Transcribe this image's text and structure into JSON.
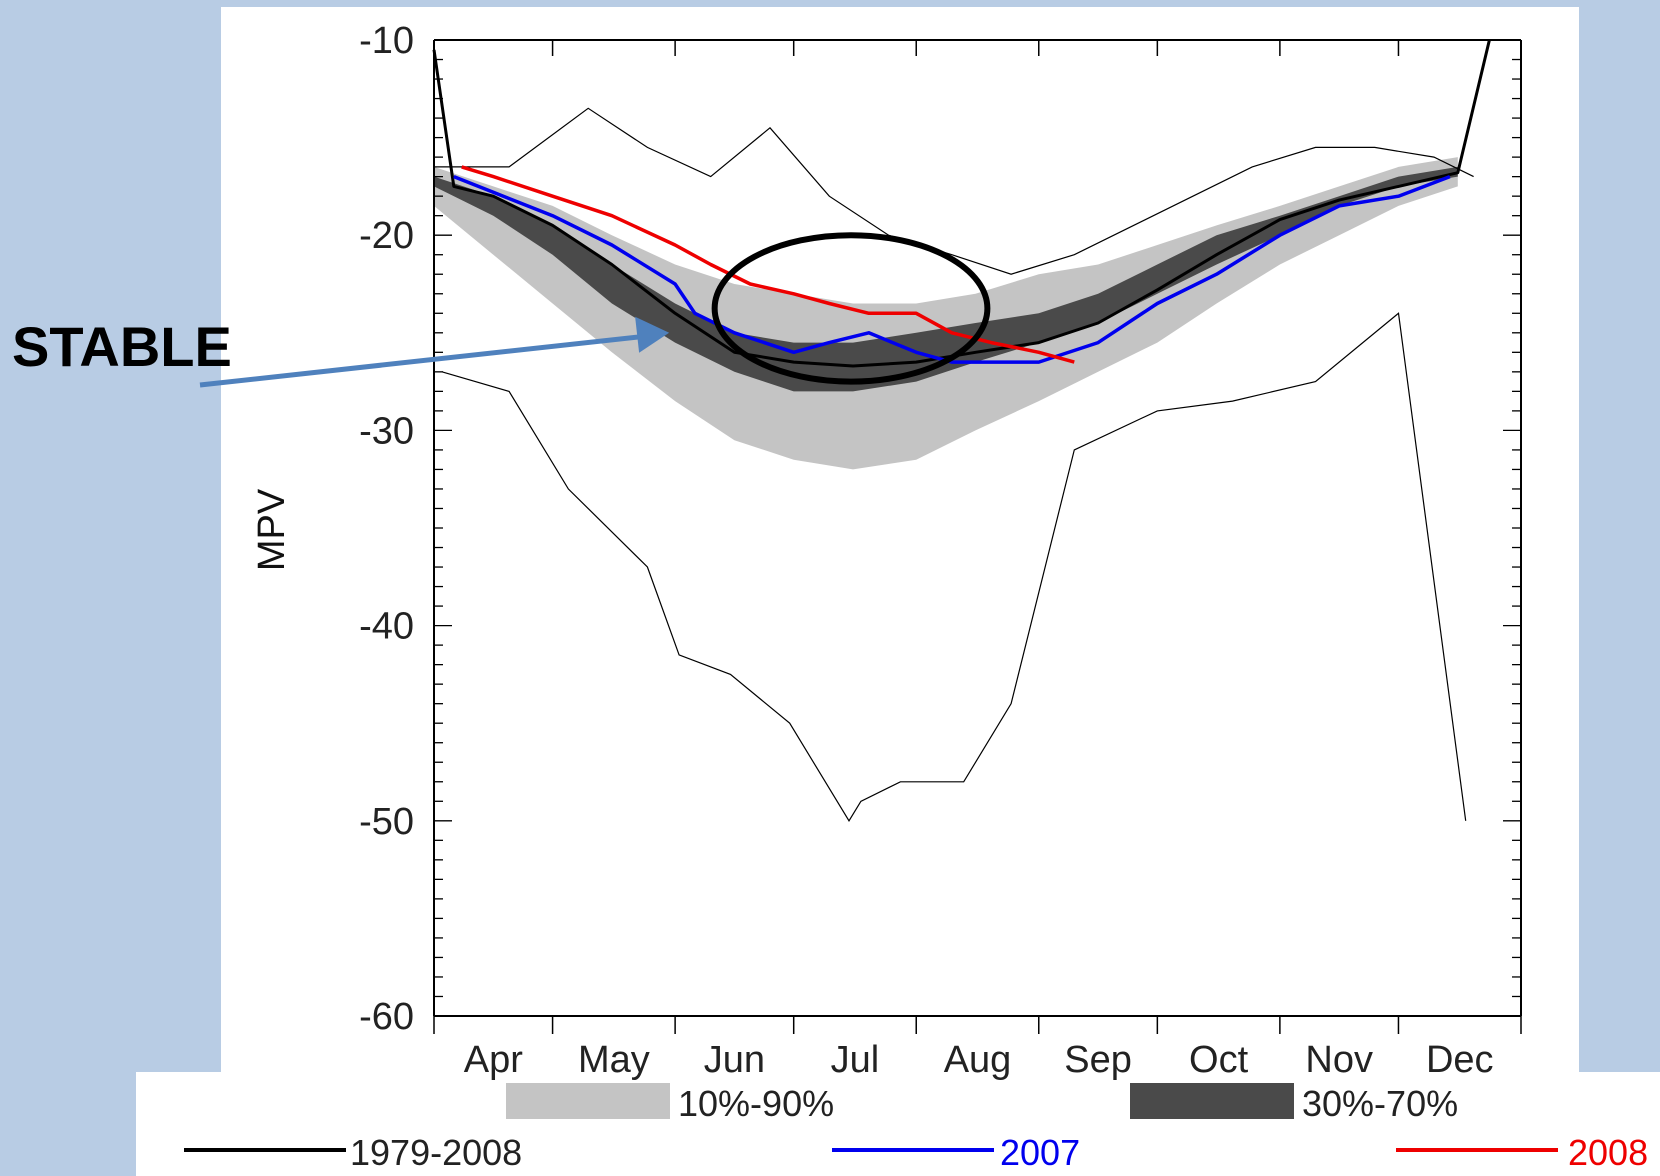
{
  "chart_data": {
    "type": "line",
    "title": "",
    "xlabel": "",
    "ylabel": "MPV",
    "ylim": [
      -60,
      -10
    ],
    "yticks": [
      "-10",
      "-20",
      "-30",
      "-40",
      "-50",
      "-60"
    ],
    "xlim_days": [
      0,
      275
    ],
    "months": [
      "Apr",
      "May",
      "Jun",
      "Jul",
      "Aug",
      "Sep",
      "Oct",
      "Nov",
      "Dec"
    ],
    "month_starts": [
      "Apr 1",
      "May 1",
      "Jun 1",
      "Jul 1",
      "Aug 1",
      "Sep 1",
      "Oct 1",
      "Nov 1",
      "Dec 1"
    ],
    "grid": false,
    "bands": [
      {
        "name": "10%-90%",
        "color": "#c4c4c4",
        "x": [
          "Apr 1",
          "Apr 16",
          "May 1",
          "May 16",
          "Jun 1",
          "Jun 16",
          "Jul 1",
          "Jul 16",
          "Aug 1",
          "Aug 16",
          "Sep 1",
          "Sep 16",
          "Oct 1",
          "Oct 16",
          "Nov 1",
          "Nov 16",
          "Dec 1",
          "Dec 16"
        ],
        "lower": [
          -18.5,
          -21.0,
          -23.5,
          -26.0,
          -28.5,
          -30.5,
          -31.5,
          -32.0,
          -31.5,
          -30.0,
          -28.5,
          -27.0,
          -25.5,
          -23.5,
          -21.5,
          -20.0,
          -18.5,
          -17.5
        ],
        "upper": [
          -16.5,
          -17.5,
          -18.5,
          -20.0,
          -21.5,
          -22.5,
          -23.0,
          -23.5,
          -23.5,
          -23.0,
          -22.0,
          -21.5,
          -20.5,
          -19.5,
          -18.5,
          -17.5,
          -16.5,
          -16.0
        ]
      },
      {
        "name": "30%-70%",
        "color": "#4a4a4a",
        "x": [
          "Apr 1",
          "Apr 16",
          "May 1",
          "May 16",
          "Jun 1",
          "Jun 16",
          "Jul 1",
          "Jul 16",
          "Aug 1",
          "Aug 16",
          "Sep 1",
          "Sep 16",
          "Oct 1",
          "Oct 16",
          "Nov 1",
          "Nov 16",
          "Dec 1",
          "Dec 16"
        ],
        "lower": [
          -17.5,
          -19.0,
          -21.0,
          -23.5,
          -25.5,
          -27.0,
          -28.0,
          -28.0,
          -27.5,
          -26.5,
          -25.5,
          -24.5,
          -23.0,
          -21.5,
          -20.0,
          -18.5,
          -17.5,
          -17.0
        ],
        "upper": [
          -17.0,
          -18.0,
          -19.5,
          -21.5,
          -23.5,
          -25.0,
          -25.5,
          -25.5,
          -25.0,
          -24.5,
          -24.0,
          -23.0,
          -21.5,
          -20.0,
          -19.0,
          -18.0,
          -17.0,
          -16.5
        ]
      }
    ],
    "series": [
      {
        "name": "1979-2008",
        "color": "#000000",
        "x": [
          "Apr 1",
          "Apr 6",
          "Apr 16",
          "May 1",
          "May 16",
          "Jun 1",
          "Jun 16",
          "Jul 1",
          "Jul 16",
          "Aug 1",
          "Aug 16",
          "Sep 1",
          "Sep 16",
          "Oct 1",
          "Oct 16",
          "Nov 1",
          "Nov 16",
          "Dec 1",
          "Dec 16",
          "Dec 24"
        ],
        "y": [
          -10.5,
          -17.5,
          -18.0,
          -19.5,
          -21.5,
          -24.0,
          -26.0,
          -26.5,
          -26.7,
          -26.5,
          -26.0,
          -25.5,
          -24.5,
          -22.8,
          -21.0,
          -19.2,
          -18.2,
          -17.5,
          -16.8,
          -10.0
        ]
      },
      {
        "name": "2007",
        "color": "#0000ee",
        "x": [
          "Apr 6",
          "Apr 16",
          "May 1",
          "May 16",
          "Jun 1",
          "Jun 6",
          "Jun 16",
          "Jul 1",
          "Jul 10",
          "Jul 20",
          "Aug 1",
          "Aug 10",
          "Aug 20",
          "Sep 1",
          "Sep 16",
          "Oct 1",
          "Oct 16",
          "Nov 1",
          "Nov 16",
          "Dec 1",
          "Dec 14"
        ],
        "y": [
          -17.0,
          -17.8,
          -19.0,
          -20.5,
          -22.5,
          -24.0,
          -25.0,
          -26.0,
          -25.5,
          -25.0,
          -26.0,
          -26.5,
          -26.5,
          -26.5,
          -25.5,
          -23.5,
          -22.0,
          -20.0,
          -18.5,
          -18.0,
          -17.0
        ]
      },
      {
        "name": "2008",
        "color": "#ee0000",
        "x": [
          "Apr 8",
          "Apr 16",
          "May 1",
          "May 16",
          "Jun 1",
          "Jun 10",
          "Jun 20",
          "Jul 1",
          "Jul 10",
          "Jul 20",
          "Aug 1",
          "Aug 10",
          "Aug 20",
          "Sep 1",
          "Sep 10"
        ],
        "y": [
          -16.5,
          -17.0,
          -18.0,
          -19.0,
          -20.5,
          -21.5,
          -22.5,
          -23.0,
          -23.5,
          -24.0,
          -24.0,
          -25.0,
          -25.5,
          -26.0,
          -26.5
        ]
      }
    ],
    "envelope_series": [
      {
        "name": "minimum",
        "color": "#000000",
        "x": [
          "Apr 3",
          "Apr 20",
          "May 5",
          "May 25",
          "Jun 2",
          "Jun 15",
          "Jun 30",
          "Jul 15",
          "Jul 18",
          "Jul 28",
          "Aug 13",
          "Aug 25",
          "Sep 10",
          "Oct 1",
          "Oct 20",
          "Nov 10",
          "Dec 1",
          "Dec 18"
        ],
        "y": [
          -27.0,
          -28.0,
          -33.0,
          -37.0,
          -41.5,
          -42.5,
          -45.0,
          -50.0,
          -49.0,
          -48.0,
          -48.0,
          -44.0,
          -31.0,
          -29.0,
          -28.5,
          -27.5,
          -24.0,
          -50.0
        ]
      },
      {
        "name": "maximum",
        "color": "#000000",
        "x": [
          "Apr 1",
          "Apr 20",
          "May 10",
          "May 25",
          "Jun 10",
          "Jun 25",
          "Jul 10",
          "Jul 25",
          "Aug 10",
          "Aug 25",
          "Sep 10",
          "Sep 25",
          "Oct 10",
          "Oct 25",
          "Nov 10",
          "Nov 25",
          "Dec 10",
          "Dec 20"
        ],
        "y": [
          -16.5,
          -16.5,
          -13.5,
          -15.5,
          -17.0,
          -14.5,
          -18.0,
          -20.0,
          -21.0,
          -22.0,
          -21.0,
          -19.5,
          -18.0,
          -16.5,
          -15.5,
          -15.5,
          -16.0,
          -17.0
        ]
      }
    ],
    "legend_position": "bottom",
    "annotations": [
      {
        "text": "STABLE",
        "type": "arrow-label"
      },
      {
        "type": "ellipse",
        "note": ""
      }
    ]
  },
  "legend": {
    "band1": "10%-90%",
    "band2": "30%-70%",
    "line1": "1979-2008",
    "line2": "2007",
    "line3": "2008"
  },
  "callout": {
    "text": "STABLE"
  }
}
